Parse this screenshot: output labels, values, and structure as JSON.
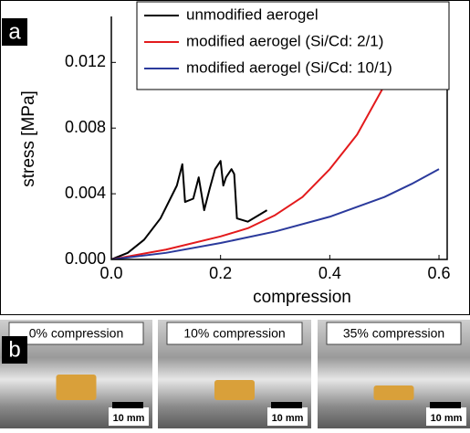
{
  "chart_data": {
    "type": "line",
    "panel_label": "a",
    "x_label": "compression",
    "y_label": "stress [MPa]",
    "xlim": [
      0,
      0.615
    ],
    "ylim": [
      0,
      0.0148
    ],
    "xticks": [
      {
        "value": 0,
        "label": "0.0"
      },
      0.2,
      0.4,
      0.6
    ],
    "yticks": [
      {
        "value": 0,
        "label": "0.000"
      },
      0.004,
      0.008,
      0.012
    ],
    "legend": "top-right",
    "series": [
      {
        "name": "unmodified aerogel",
        "color": "#000000",
        "x": [
          0,
          0.03,
          0.06,
          0.09,
          0.12,
          0.13,
          0.135,
          0.15,
          0.16,
          0.17,
          0.18,
          0.19,
          0.2,
          0.205,
          0.21,
          0.22,
          0.225,
          0.23,
          0.25,
          0.27,
          0.285
        ],
        "values": [
          0,
          0.0004,
          0.0012,
          0.0025,
          0.0045,
          0.0058,
          0.0035,
          0.0037,
          0.005,
          0.003,
          0.0043,
          0.0055,
          0.006,
          0.0045,
          0.005,
          0.0055,
          0.0052,
          0.0025,
          0.0023,
          0.0027,
          0.003
        ]
      },
      {
        "name": "modified aerogel (Si/Cd: 2/1)",
        "color": "#e31a1c",
        "x": [
          0,
          0.1,
          0.2,
          0.25,
          0.3,
          0.35,
          0.4,
          0.45,
          0.5,
          0.53,
          0.55
        ],
        "values": [
          0,
          0.0006,
          0.0014,
          0.0019,
          0.0027,
          0.0038,
          0.0055,
          0.0076,
          0.0106,
          0.0128,
          0.0148
        ]
      },
      {
        "name": "modified aerogel (Si/Cd: 10/1)",
        "color": "#2b3a9c",
        "x": [
          0,
          0.1,
          0.2,
          0.3,
          0.4,
          0.5,
          0.55,
          0.6
        ],
        "values": [
          0,
          0.0004,
          0.001,
          0.0017,
          0.0026,
          0.0038,
          0.0046,
          0.0055
        ]
      }
    ]
  },
  "photos": {
    "panel_label": "b",
    "items": [
      {
        "caption": "0% compression",
        "scale": "10 mm"
      },
      {
        "caption": "10% compression",
        "scale": "10 mm"
      },
      {
        "caption": "35% compression",
        "scale": "10 mm"
      }
    ]
  }
}
